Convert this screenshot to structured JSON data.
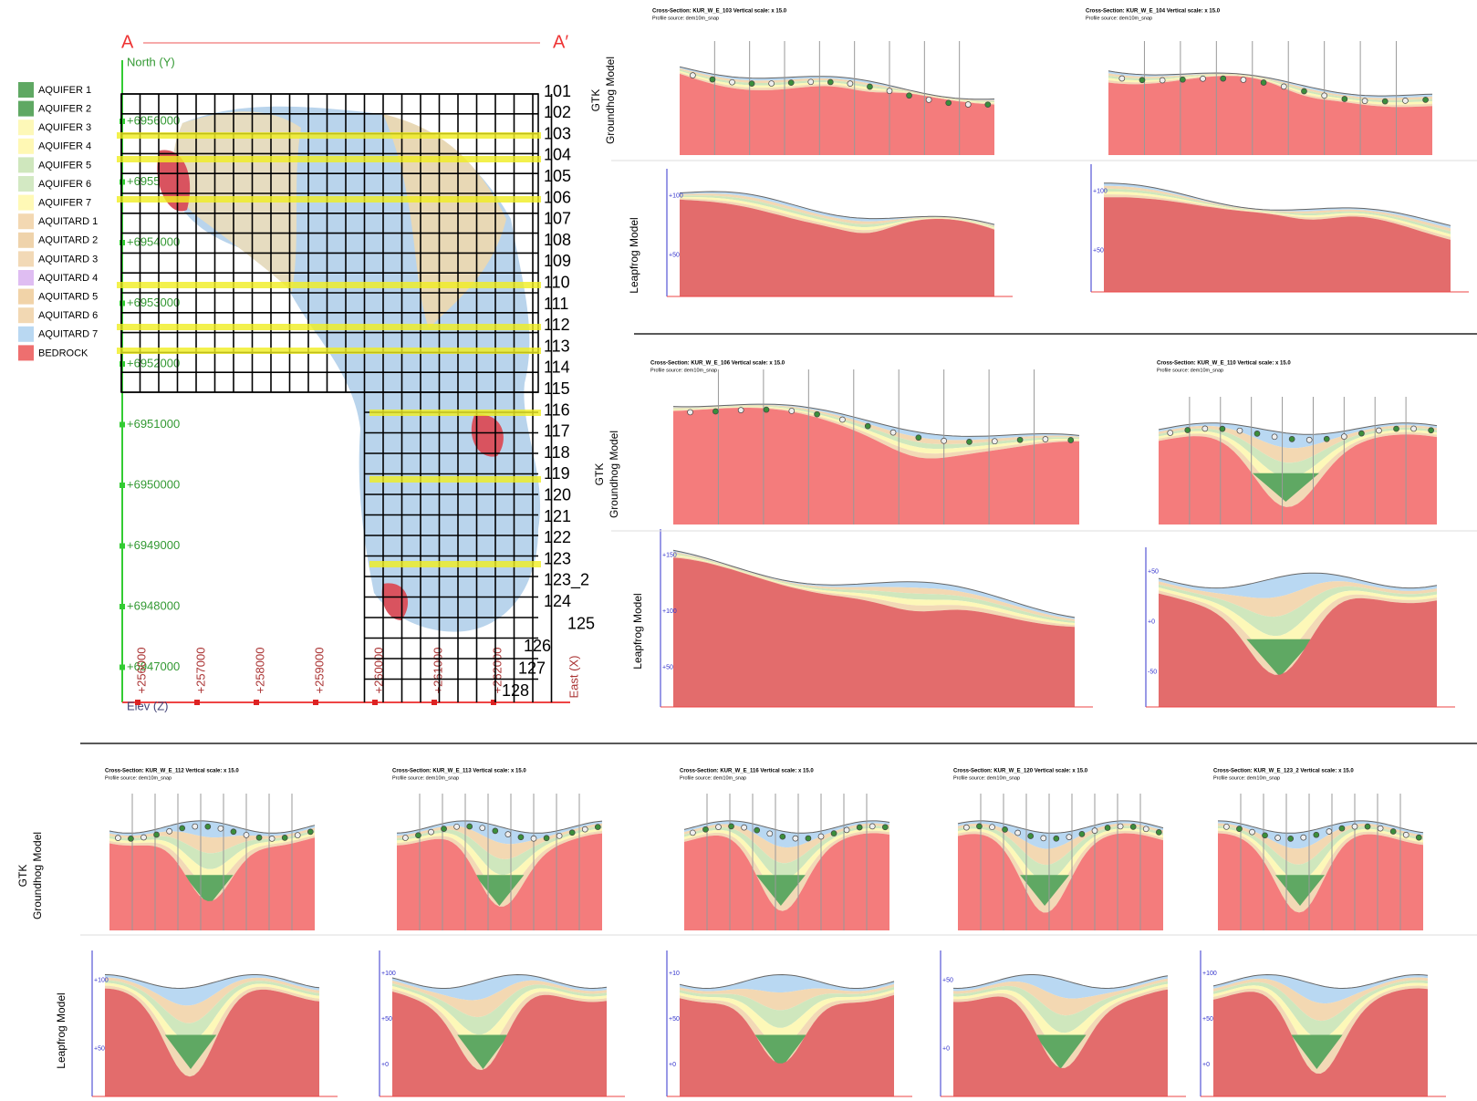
{
  "legend": [
    "AQUIFER 1",
    "AQUIFER 2",
    "AQUIFER 3",
    "AQUIFER 4",
    "AQUIFER 5",
    "AQUIFER 6",
    "AQUIFER 7",
    "AQUITARD 1",
    "AQUITARD 2",
    "AQUITARD 3",
    "AQUITARD 4",
    "AQUITARD 5",
    "AQUITARD 6",
    "AQUITARD 7",
    "BEDROCK"
  ],
  "legend_colors": [
    "#5fa863",
    "#5fa863",
    "#fdf8b8",
    "#fff8b4",
    "#cfe7bd",
    "#d3e9c3",
    "#fff9b6",
    "#f3d8b2",
    "#efd3ab",
    "#f2d9b6",
    "#dfbdf2",
    "#f1d3a8",
    "#f2d8b3",
    "#b9d8f2",
    "#ee6f6f"
  ],
  "map": {
    "a": "A",
    "a_prime": "A′",
    "north": "North (Y)",
    "east": "East (X)",
    "elev": "Elev (Z)",
    "y_ticks": [
      "+6956000",
      "+6955000",
      "+6954000",
      "+6953000",
      "+6952000",
      "+6951000",
      "+6950000",
      "+6949000",
      "+6948000",
      "+6947000"
    ],
    "x_ticks": [
      "+256000",
      "+257000",
      "+258000",
      "+259000",
      "+260000",
      "+261000",
      "+262000"
    ],
    "sections": [
      "101",
      "102",
      "103",
      "104",
      "105",
      "106",
      "107",
      "108",
      "109",
      "110",
      "111",
      "112",
      "113",
      "114",
      "115",
      "116",
      "117",
      "118",
      "119",
      "120",
      "121",
      "122",
      "123",
      "123_2",
      "124",
      "125",
      "126",
      "127",
      "128"
    ]
  },
  "labels": {
    "gtk": "GTK",
    "groundhog": "Groundhog Model",
    "leapfrog": "Leapfrog Model"
  },
  "sections": [
    {
      "title": "Cross-Section: KUR_W_E_103   Vertical scale: x 15.0",
      "source": "Profile source: dem10m_snap",
      "ticks": [
        "+100",
        "+50"
      ]
    },
    {
      "title": "Cross-Section: KUR_W_E_104   Vertical scale: x 15.0",
      "source": "Profile source: dem10m_snap",
      "ticks": [
        "+100",
        "+50"
      ]
    },
    {
      "title": "Cross-Section: KUR_W_E_106   Vertical scale: x 15.0",
      "source": "Profile source: dem10m_snap",
      "ticks": [
        "+150",
        "+100",
        "+50"
      ]
    },
    {
      "title": "Cross-Section: KUR_W_E_110   Vertical scale: x 15.0",
      "source": "Profile source: dem10m_snap",
      "ticks": [
        "+50",
        "+0",
        "-50"
      ]
    },
    {
      "title": "Cross-Section: KUR_W_E_112   Vertical scale: x 15.0",
      "source": "Profile source: dem10m_snap",
      "ticks": [
        "+100",
        "+50"
      ]
    },
    {
      "title": "Cross-Section: KUR_W_E_113   Vertical scale: x 15.0",
      "source": "Profile source: dem10m_snap",
      "ticks": [
        "+100",
        "+50",
        "+0"
      ]
    },
    {
      "title": "Cross-Section: KUR_W_E_116   Vertical scale: x 15.0",
      "source": "Profile source: dem10m_snap",
      "ticks": [
        "+10",
        "+50",
        "+0"
      ]
    },
    {
      "title": "Cross-Section: KUR_W_E_120   Vertical scale: x 15.0",
      "source": "Profile source: dem10m_snap",
      "ticks": [
        "+50",
        "+0"
      ]
    },
    {
      "title": "Cross-Section: KUR_W_E_123_2   Vertical scale: x 15.0",
      "source": "Profile source: dem10m_snap",
      "ticks": [
        "+100",
        "+50",
        "+0"
      ]
    }
  ]
}
